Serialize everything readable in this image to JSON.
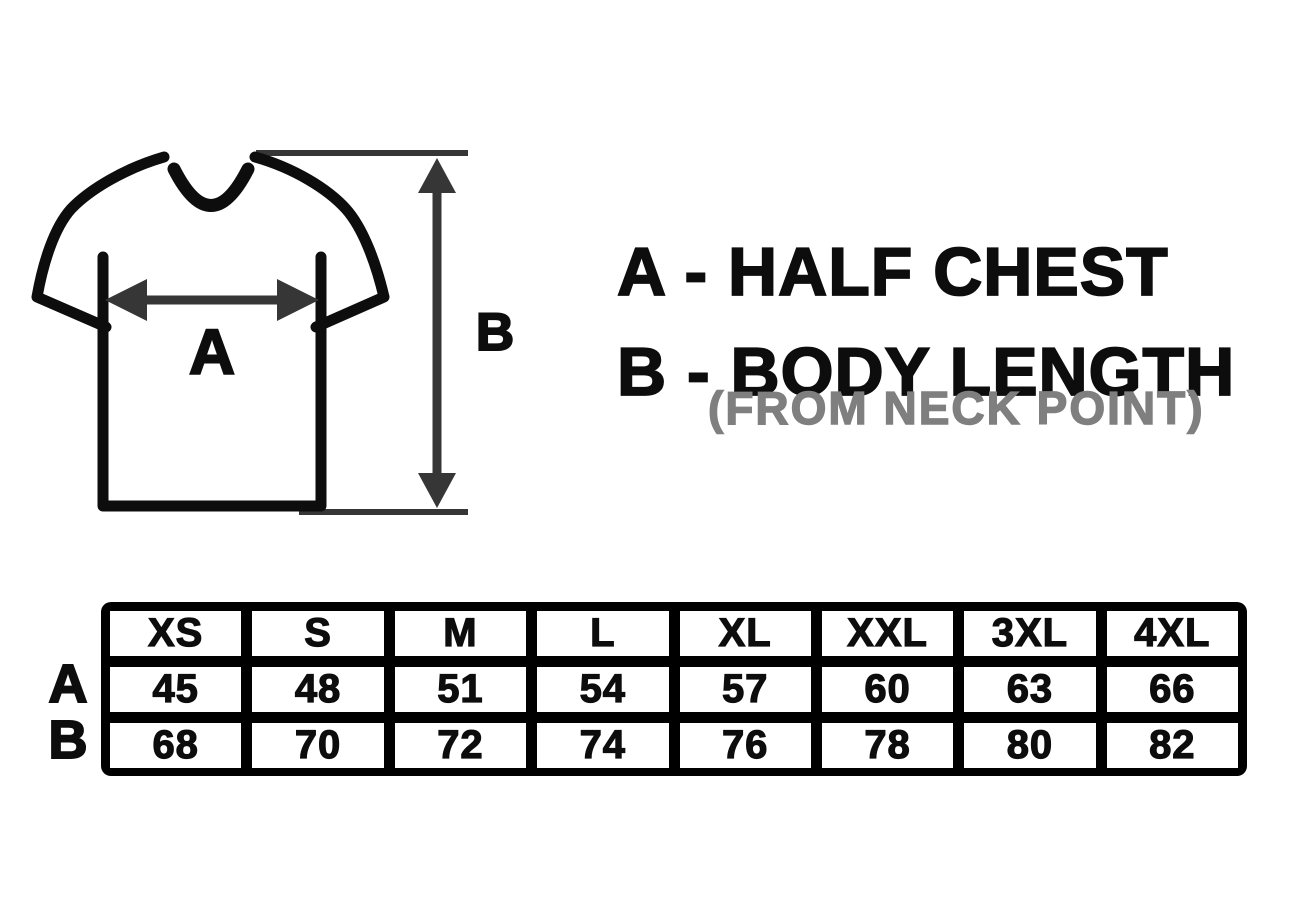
{
  "diagram": {
    "chest_arrow_label": "A",
    "length_arrow_label": "B"
  },
  "legend": {
    "line_a": "A - HALF CHEST",
    "line_b": "B - BODY LENGTH",
    "note": "(FROM NECK POINT)"
  },
  "table": {
    "row_labels": {
      "a": "A",
      "b": "B"
    },
    "sizes": [
      "XS",
      "S",
      "M",
      "L",
      "XL",
      "XXL",
      "3XL",
      "4XL"
    ],
    "half_chest": [
      45,
      48,
      51,
      54,
      57,
      60,
      63,
      66
    ],
    "body_length": [
      68,
      70,
      72,
      74,
      76,
      78,
      80,
      82
    ]
  },
  "colors": {
    "outline": "#0d0d0d",
    "dimension": "#363636",
    "note": "#7f7f7f",
    "table-border": "#000000",
    "cell-bg": "#ffffff"
  }
}
